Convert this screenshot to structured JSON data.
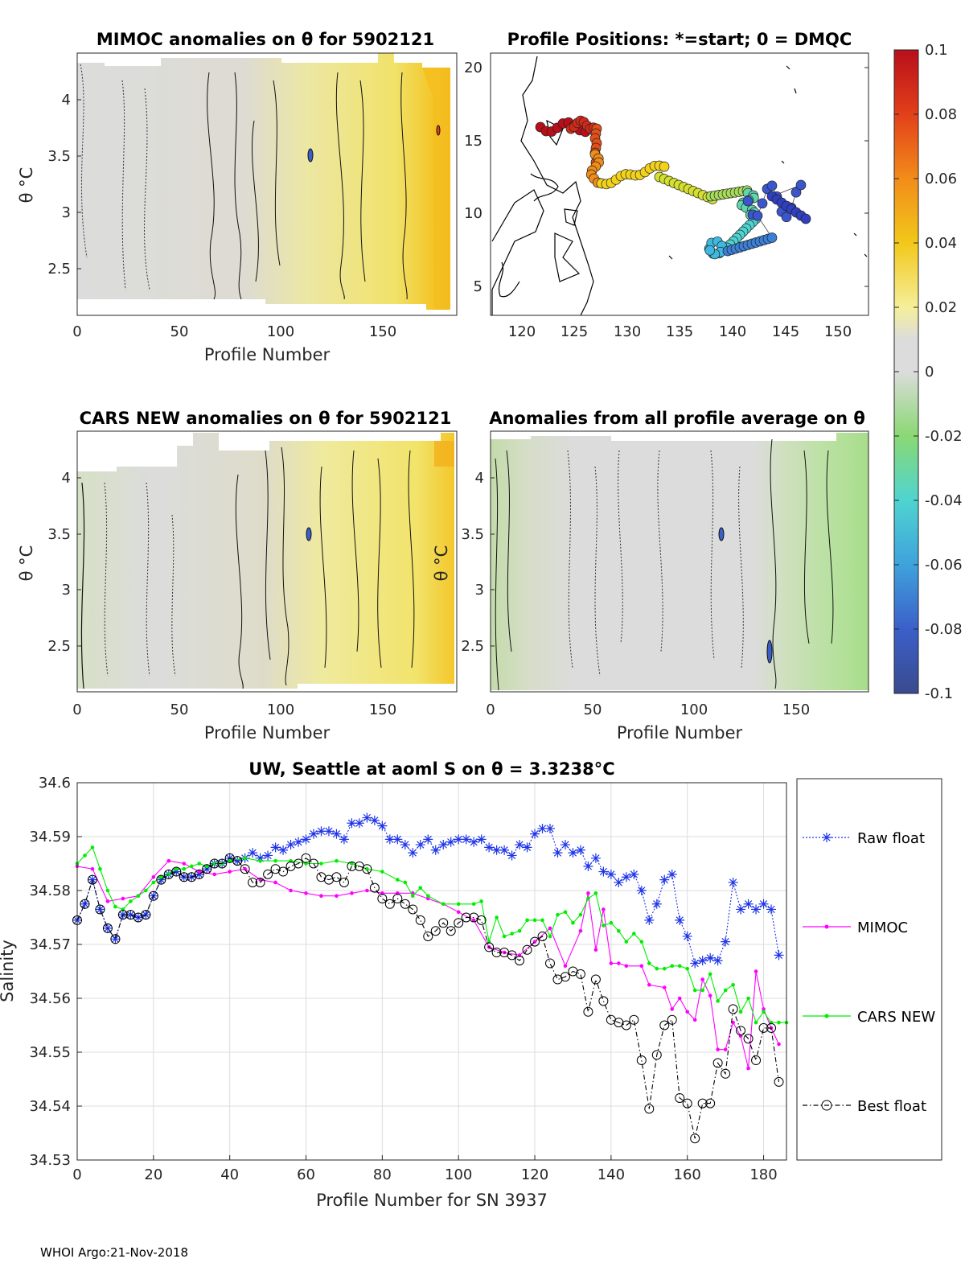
{
  "figure": {
    "footer": "WHOI Argo:21-Nov-2018"
  },
  "panel_mimoc": {
    "title": "MIMOC anomalies on θ  for 5902121",
    "xlabel": "Profile Number",
    "ylabel": "θ °C",
    "xticks": [
      "0",
      "50",
      "100",
      "150"
    ],
    "yticks": [
      "2.5",
      "3",
      "3.5",
      "4"
    ]
  },
  "panel_positions": {
    "title": "Profile Positions: *=start; 0 = DMQC",
    "xticks": [
      "120",
      "125",
      "130",
      "135",
      "140",
      "145",
      "150"
    ],
    "yticks": [
      "5",
      "10",
      "15",
      "20"
    ]
  },
  "panel_cars": {
    "title": "CARS NEW anomalies on θ for 5902121",
    "xlabel": "Profile Number",
    "ylabel": "θ °C",
    "xticks": [
      "0",
      "50",
      "100",
      "150"
    ],
    "yticks": [
      "2.5",
      "3",
      "3.5",
      "4"
    ]
  },
  "panel_allavg": {
    "title": "Anomalies from all profile average on θ",
    "xlabel": "Profile Number",
    "ylabel": "θ °C",
    "xticks": [
      "0",
      "50",
      "100",
      "150"
    ],
    "yticks": [
      "2.5",
      "3",
      "3.5",
      "4"
    ]
  },
  "colorbar": {
    "ticks": [
      "0.1",
      "0.08",
      "0.06",
      "0.04",
      "0.02",
      "0",
      "-0.02",
      "-0.04",
      "-0.06",
      "-0.08",
      "-0.1"
    ]
  },
  "legend": {
    "raw": "Raw float",
    "mimoc": "MIMOC",
    "cars": "CARS NEW",
    "best": "Best float"
  },
  "colors": {
    "raw": "#1f35e8",
    "mimoc": "#ff00ff",
    "cars": "#00ee00",
    "best": "#000000"
  },
  "chart_data": {
    "type": "line",
    "title": "UW, Seattle at aoml S on θ = 3.3238°C",
    "xlabel": "Profile Number for SN 3937",
    "ylabel": "Salinity",
    "xlim": [
      0,
      186
    ],
    "ylim": [
      34.53,
      34.6
    ],
    "xticks": [
      "0",
      "20",
      "40",
      "60",
      "80",
      "100",
      "120",
      "140",
      "160",
      "180"
    ],
    "yticks": [
      "34.53",
      "34.54",
      "34.55",
      "34.56",
      "34.57",
      "34.58",
      "34.59",
      "34.6"
    ],
    "series": [
      {
        "name": "Raw float",
        "x": [
          0,
          2,
          4,
          6,
          8,
          10,
          12,
          14,
          16,
          18,
          20,
          22,
          24,
          26,
          28,
          30,
          32,
          34,
          36,
          38,
          40,
          42,
          44,
          46,
          48,
          50,
          52,
          54,
          56,
          58,
          60,
          62,
          64,
          66,
          68,
          70,
          72,
          74,
          76,
          78,
          80,
          82,
          84,
          86,
          88,
          90,
          92,
          94,
          96,
          98,
          100,
          102,
          104,
          106,
          108,
          110,
          112,
          114,
          116,
          118,
          120,
          122,
          124,
          126,
          128,
          130,
          132,
          134,
          136,
          138,
          140,
          142,
          144,
          146,
          148,
          150,
          152,
          154,
          156,
          158,
          160,
          162,
          164,
          166,
          168,
          170,
          172,
          174,
          176,
          178,
          180,
          182,
          184
        ],
        "y": [
          34.5745,
          34.5775,
          34.582,
          34.5765,
          34.573,
          34.571,
          34.5755,
          34.5755,
          34.575,
          34.5755,
          34.579,
          34.582,
          34.583,
          34.5835,
          34.5825,
          34.5825,
          34.583,
          34.584,
          34.585,
          34.585,
          34.586,
          34.5855,
          34.586,
          34.587,
          34.586,
          34.5865,
          34.588,
          34.5875,
          34.5885,
          34.589,
          34.5895,
          34.5905,
          34.591,
          34.591,
          34.5905,
          34.5895,
          34.5925,
          34.5925,
          34.5935,
          34.593,
          34.592,
          34.5895,
          34.5895,
          34.5885,
          34.587,
          34.5885,
          34.5895,
          34.5875,
          34.5885,
          34.589,
          34.5895,
          34.5895,
          34.589,
          34.5895,
          34.588,
          34.5875,
          34.5875,
          34.5865,
          34.5885,
          34.588,
          34.5905,
          34.5915,
          34.5915,
          34.587,
          34.5885,
          34.587,
          34.5875,
          34.5845,
          34.586,
          34.5835,
          34.583,
          34.5815,
          34.5825,
          34.583,
          34.58,
          34.5745,
          34.5775,
          34.582,
          34.583,
          34.5745,
          34.5715,
          34.5665,
          34.567,
          34.5675,
          34.567,
          34.5705,
          34.5815,
          34.5765,
          34.5775,
          34.5765,
          34.5775,
          34.5765,
          34.568
        ]
      },
      {
        "name": "MIMOC",
        "x": [
          0,
          4,
          8,
          12,
          16,
          20,
          24,
          28,
          32,
          36,
          40,
          44,
          48,
          52,
          56,
          60,
          64,
          68,
          72,
          76,
          80,
          84,
          88,
          92,
          96,
          100,
          104,
          108,
          112,
          116,
          120,
          124,
          128,
          132,
          134,
          136,
          138,
          140,
          142,
          144,
          148,
          150,
          154,
          156,
          158,
          160,
          162,
          164,
          166,
          168,
          170,
          172,
          174,
          176,
          178,
          180,
          182,
          184
        ],
        "y": [
          34.5845,
          34.584,
          34.578,
          34.5785,
          34.579,
          34.5825,
          34.5855,
          34.585,
          34.5835,
          34.583,
          34.5835,
          34.584,
          34.582,
          34.5815,
          34.58,
          34.5795,
          34.579,
          34.579,
          34.5795,
          34.58,
          34.5795,
          34.5795,
          34.5795,
          34.5785,
          34.5775,
          34.576,
          34.5745,
          34.5695,
          34.5685,
          34.568,
          34.5705,
          34.573,
          34.566,
          34.5725,
          34.5795,
          34.569,
          34.5765,
          34.5665,
          34.5665,
          34.566,
          34.566,
          34.5625,
          34.562,
          34.558,
          34.56,
          34.5575,
          34.556,
          34.5635,
          34.5605,
          34.5505,
          34.5505,
          34.5555,
          34.553,
          34.547,
          34.565,
          34.558,
          34.5545,
          34.5515
        ]
      },
      {
        "name": "CARS NEW",
        "x": [
          0,
          2,
          4,
          6,
          8,
          10,
          12,
          14,
          16,
          18,
          20,
          22,
          24,
          26,
          28,
          30,
          32,
          34,
          36,
          38,
          40,
          44,
          48,
          52,
          56,
          60,
          64,
          68,
          72,
          76,
          80,
          84,
          86,
          88,
          90,
          92,
          96,
          100,
          104,
          106,
          108,
          110,
          112,
          114,
          116,
          118,
          120,
          122,
          124,
          126,
          128,
          130,
          132,
          134,
          136,
          138,
          140,
          142,
          144,
          146,
          148,
          150,
          152,
          154,
          156,
          158,
          160,
          162,
          164,
          166,
          168,
          170,
          172,
          174,
          176,
          178,
          180,
          182,
          184,
          186
        ],
        "y": [
          34.585,
          34.5865,
          34.588,
          34.584,
          34.58,
          34.577,
          34.5765,
          34.578,
          34.579,
          34.58,
          34.5815,
          34.5825,
          34.583,
          34.584,
          34.584,
          34.5845,
          34.585,
          34.5845,
          34.585,
          34.585,
          34.5855,
          34.586,
          34.5855,
          34.5855,
          34.5855,
          34.585,
          34.585,
          34.5855,
          34.585,
          34.584,
          34.5835,
          34.582,
          34.5815,
          34.579,
          34.5805,
          34.579,
          34.5775,
          34.5775,
          34.5775,
          34.578,
          34.5705,
          34.575,
          34.5715,
          34.572,
          34.5725,
          34.5745,
          34.5745,
          34.5745,
          34.5715,
          34.5755,
          34.576,
          34.574,
          34.5755,
          34.5785,
          34.5795,
          34.5735,
          34.574,
          34.5725,
          34.5705,
          34.572,
          34.5705,
          34.5665,
          34.5655,
          34.5655,
          34.566,
          34.566,
          34.5655,
          34.5615,
          34.5615,
          34.5645,
          34.5595,
          34.5615,
          34.5625,
          34.5575,
          34.56,
          34.5555,
          34.5575,
          34.5555,
          34.5555,
          34.5555
        ]
      },
      {
        "name": "Best float",
        "x": [
          0,
          2,
          4,
          6,
          8,
          10,
          12,
          14,
          16,
          18,
          20,
          22,
          24,
          26,
          28,
          30,
          32,
          34,
          36,
          38,
          40,
          42,
          44,
          46,
          48,
          50,
          52,
          54,
          56,
          58,
          60,
          62,
          64,
          66,
          68,
          70,
          72,
          74,
          76,
          78,
          80,
          82,
          84,
          86,
          88,
          90,
          92,
          94,
          96,
          98,
          100,
          102,
          104,
          106,
          108,
          110,
          112,
          114,
          116,
          118,
          120,
          122,
          124,
          126,
          128,
          130,
          132,
          134,
          136,
          138,
          140,
          142,
          144,
          146,
          148,
          150,
          152,
          154,
          156,
          158,
          160,
          162,
          164,
          166,
          168,
          170,
          172,
          174,
          176,
          178,
          180,
          182,
          184
        ],
        "y": [
          34.5745,
          34.5775,
          34.582,
          34.5765,
          34.573,
          34.571,
          34.5755,
          34.5755,
          34.575,
          34.5755,
          34.579,
          34.582,
          34.583,
          34.5835,
          34.5825,
          34.5825,
          34.583,
          34.584,
          34.585,
          34.585,
          34.586,
          34.5855,
          34.584,
          34.5815,
          34.5815,
          34.583,
          34.584,
          34.5835,
          34.5845,
          34.585,
          34.586,
          34.585,
          34.5825,
          34.582,
          34.5825,
          34.5815,
          34.5845,
          34.5845,
          34.584,
          34.5805,
          34.5785,
          34.5775,
          34.5785,
          34.5775,
          34.5765,
          34.5745,
          34.5715,
          34.5725,
          34.574,
          34.5725,
          34.574,
          34.575,
          34.575,
          34.5745,
          34.5695,
          34.5685,
          34.5685,
          34.568,
          34.567,
          34.569,
          34.5705,
          34.5715,
          34.5665,
          34.5635,
          34.564,
          34.565,
          34.5645,
          34.5575,
          34.5635,
          34.5595,
          34.556,
          34.5555,
          34.555,
          34.556,
          34.5485,
          34.5395,
          34.5495,
          34.555,
          34.556,
          34.5415,
          34.5405,
          34.534,
          34.5405,
          34.5405,
          34.548,
          34.546,
          34.558,
          34.554,
          34.5525,
          34.5485,
          34.5545,
          34.5545,
          34.5445
        ]
      }
    ]
  }
}
